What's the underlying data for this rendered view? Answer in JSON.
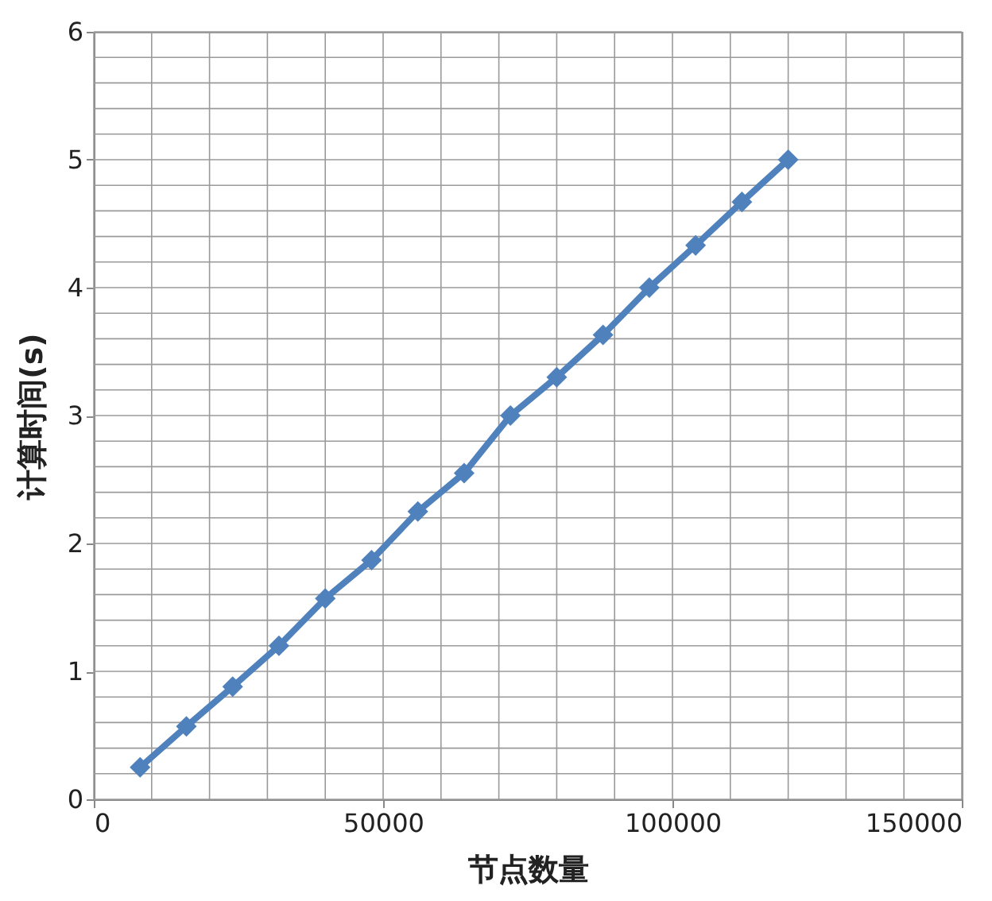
{
  "chart_data": {
    "type": "line",
    "xlabel": "节点数量",
    "ylabel": "计算时间(s)",
    "x": [
      8000,
      16000,
      24000,
      32000,
      40000,
      48000,
      56000,
      64000,
      72000,
      80000,
      88000,
      96000,
      104000,
      112000,
      120000
    ],
    "series": [
      {
        "color": "#4f81bd",
        "values": [
          0.25,
          0.57,
          0.88,
          1.2,
          1.57,
          1.87,
          2.25,
          2.55,
          3.0,
          3.3,
          3.63,
          4.0,
          4.33,
          4.67,
          5.0
        ]
      }
    ],
    "xlim": [
      0,
      150000
    ],
    "xticks": [
      0,
      50000,
      100000,
      150000
    ],
    "ylim": [
      0,
      6
    ],
    "yticks": [
      0,
      1,
      2,
      3,
      4,
      5,
      6
    ],
    "grid": true,
    "marker": "diamond",
    "line_style": "solid",
    "legend": false
  }
}
